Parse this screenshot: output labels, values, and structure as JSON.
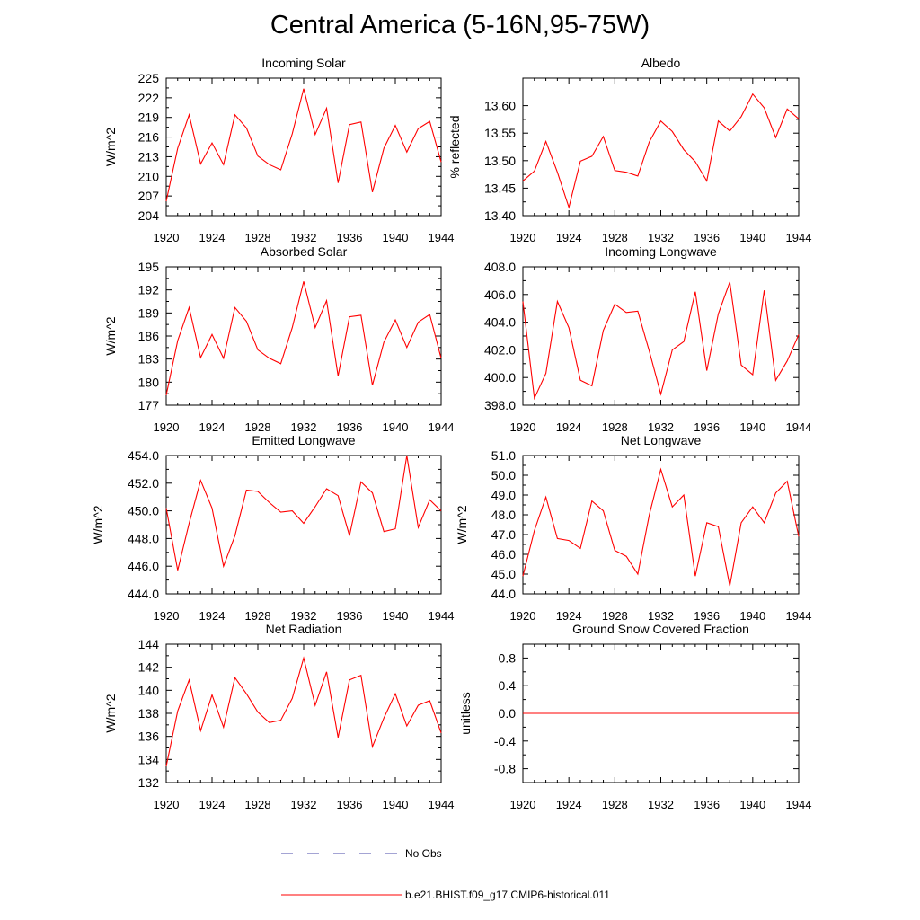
{
  "title": "Central America (5-16N,95-75W)",
  "colors": {
    "model": "#ff0000",
    "obs": "#4a4aa8",
    "axis": "#000000"
  },
  "legend": {
    "obs_label": "No Obs",
    "model_label": "b.e21.BHIST.f09_g17.CMIP6-historical.011"
  },
  "chart_data": [
    {
      "type": "line",
      "title": "Incoming Solar",
      "ylabel": "W/m^2",
      "x": [
        1920,
        1921,
        1922,
        1923,
        1924,
        1925,
        1926,
        1927,
        1928,
        1929,
        1930,
        1931,
        1932,
        1933,
        1934,
        1935,
        1936,
        1937,
        1938,
        1939,
        1940,
        1941,
        1942,
        1943,
        1944
      ],
      "values": [
        206.2,
        214.3,
        219.4,
        211.9,
        215.1,
        211.8,
        219.4,
        217.4,
        213.1,
        211.8,
        211.0,
        216.5,
        223.4,
        216.4,
        220.4,
        209.0,
        217.9,
        218.3,
        207.6,
        214.3,
        217.8,
        213.7,
        217.3,
        218.4,
        212.2
      ],
      "xlim": [
        1920,
        1944
      ],
      "ylim": [
        204,
        225
      ],
      "xticks": [
        1920,
        1924,
        1928,
        1932,
        1936,
        1940,
        1944
      ],
      "yticks": [
        204,
        207,
        210,
        213,
        216,
        219,
        222,
        225
      ],
      "ytick_labels": [
        "204",
        "207",
        "210",
        "213",
        "216",
        "219",
        "222",
        "225"
      ]
    },
    {
      "type": "line",
      "title": "Albedo",
      "ylabel": "% reflected",
      "x": [
        1920,
        1921,
        1922,
        1923,
        1924,
        1925,
        1926,
        1927,
        1928,
        1929,
        1930,
        1931,
        1932,
        1933,
        1934,
        1935,
        1936,
        1937,
        1938,
        1939,
        1940,
        1941,
        1942,
        1943,
        1944
      ],
      "values": [
        13.463,
        13.481,
        13.535,
        13.479,
        13.415,
        13.499,
        13.508,
        13.544,
        13.482,
        13.479,
        13.472,
        13.534,
        13.572,
        13.553,
        13.52,
        13.498,
        13.463,
        13.572,
        13.554,
        13.58,
        13.621,
        13.596,
        13.542,
        13.594,
        13.576
      ],
      "xlim": [
        1920,
        1944
      ],
      "ylim": [
        13.4,
        13.65
      ],
      "xticks": [
        1920,
        1924,
        1928,
        1932,
        1936,
        1940,
        1944
      ],
      "yticks": [
        13.4,
        13.45,
        13.5,
        13.55,
        13.6
      ],
      "ytick_labels": [
        "13.40",
        "13.45",
        "13.50",
        "13.55",
        "13.60"
      ]
    },
    {
      "type": "line",
      "title": "Absorbed Solar",
      "ylabel": "W/m^2",
      "x": [
        1920,
        1921,
        1922,
        1923,
        1924,
        1925,
        1926,
        1927,
        1928,
        1929,
        1930,
        1931,
        1932,
        1933,
        1934,
        1935,
        1936,
        1937,
        1938,
        1939,
        1940,
        1941,
        1942,
        1943,
        1944
      ],
      "values": [
        178.3,
        185.4,
        189.7,
        183.2,
        186.2,
        183.1,
        189.7,
        187.9,
        184.2,
        183.1,
        182.4,
        187.1,
        193.1,
        187.1,
        190.6,
        180.8,
        188.5,
        188.7,
        179.6,
        185.2,
        188.1,
        184.5,
        187.8,
        188.8,
        183.1
      ],
      "xlim": [
        1920,
        1944
      ],
      "ylim": [
        177,
        195
      ],
      "xticks": [
        1920,
        1924,
        1928,
        1932,
        1936,
        1940,
        1944
      ],
      "yticks": [
        177,
        180,
        183,
        186,
        189,
        192,
        195
      ],
      "ytick_labels": [
        "177",
        "180",
        "183",
        "186",
        "189",
        "192",
        "195"
      ]
    },
    {
      "type": "line",
      "title": "Incoming Longwave",
      "ylabel": "",
      "x": [
        1920,
        1921,
        1922,
        1923,
        1924,
        1925,
        1926,
        1927,
        1928,
        1929,
        1930,
        1931,
        1932,
        1933,
        1934,
        1935,
        1936,
        1937,
        1938,
        1939,
        1940,
        1941,
        1942,
        1943,
        1944
      ],
      "values": [
        405.5,
        398.5,
        400.3,
        405.5,
        403.6,
        399.8,
        399.4,
        403.4,
        405.3,
        404.7,
        404.8,
        401.9,
        398.8,
        402.0,
        402.6,
        406.2,
        400.5,
        404.6,
        406.9,
        400.9,
        400.2,
        406.3,
        399.8,
        401.2,
        403.1
      ],
      "xlim": [
        1920,
        1944
      ],
      "ylim": [
        398.0,
        408.0
      ],
      "xticks": [
        1920,
        1924,
        1928,
        1932,
        1936,
        1940,
        1944
      ],
      "yticks": [
        398.0,
        400.0,
        402.0,
        404.0,
        406.0,
        408.0
      ],
      "ytick_labels": [
        "398.0",
        "400.0",
        "402.0",
        "404.0",
        "406.0",
        "408.0"
      ]
    },
    {
      "type": "line",
      "title": "Emitted Longwave",
      "ylabel": "W/m^2",
      "x": [
        1920,
        1921,
        1922,
        1923,
        1924,
        1925,
        1926,
        1927,
        1928,
        1929,
        1930,
        1931,
        1932,
        1933,
        1934,
        1935,
        1936,
        1937,
        1938,
        1939,
        1940,
        1941,
        1942,
        1943,
        1944
      ],
      "values": [
        450.2,
        445.7,
        449.1,
        452.2,
        450.2,
        446.0,
        448.2,
        451.5,
        451.4,
        450.6,
        449.9,
        450.0,
        449.1,
        450.3,
        451.6,
        451.1,
        448.2,
        452.1,
        451.3,
        448.5,
        448.7,
        454.0,
        448.8,
        450.8,
        450.0
      ],
      "xlim": [
        1920,
        1944
      ],
      "ylim": [
        444.0,
        454.0
      ],
      "xticks": [
        1920,
        1924,
        1928,
        1932,
        1936,
        1940,
        1944
      ],
      "yticks": [
        444.0,
        446.0,
        448.0,
        450.0,
        452.0,
        454.0
      ],
      "ytick_labels": [
        "444.0",
        "446.0",
        "448.0",
        "450.0",
        "452.0",
        "454.0"
      ]
    },
    {
      "type": "line",
      "title": "Net Longwave",
      "ylabel": "W/m^2",
      "x": [
        1920,
        1921,
        1922,
        1923,
        1924,
        1925,
        1926,
        1927,
        1928,
        1929,
        1930,
        1931,
        1932,
        1933,
        1934,
        1935,
        1936,
        1937,
        1938,
        1939,
        1940,
        1941,
        1942,
        1943,
        1944
      ],
      "values": [
        44.9,
        47.2,
        48.9,
        46.8,
        46.7,
        46.3,
        48.7,
        48.2,
        46.2,
        45.9,
        45.0,
        48.0,
        50.3,
        48.4,
        49.0,
        44.9,
        47.6,
        47.4,
        44.4,
        47.6,
        48.4,
        47.6,
        49.1,
        49.7,
        46.9
      ],
      "xlim": [
        1920,
        1944
      ],
      "ylim": [
        44.0,
        51.0
      ],
      "xticks": [
        1920,
        1924,
        1928,
        1932,
        1936,
        1940,
        1944
      ],
      "yticks": [
        44.0,
        45.0,
        46.0,
        47.0,
        48.0,
        49.0,
        50.0,
        51.0
      ],
      "ytick_labels": [
        "44.0",
        "45.0",
        "46.0",
        "47.0",
        "48.0",
        "49.0",
        "50.0",
        "51.0"
      ]
    },
    {
      "type": "line",
      "title": "Net Radiation",
      "ylabel": "W/m^2",
      "x": [
        1920,
        1921,
        1922,
        1923,
        1924,
        1925,
        1926,
        1927,
        1928,
        1929,
        1930,
        1931,
        1932,
        1933,
        1934,
        1935,
        1936,
        1937,
        1938,
        1939,
        1940,
        1941,
        1942,
        1943,
        1944
      ],
      "values": [
        133.4,
        138.2,
        140.9,
        136.5,
        139.6,
        136.8,
        141.1,
        139.7,
        138.1,
        137.2,
        137.4,
        139.3,
        142.8,
        138.7,
        141.6,
        135.9,
        140.9,
        141.3,
        135.1,
        137.6,
        139.7,
        136.9,
        138.7,
        139.1,
        136.3
      ],
      "xlim": [
        1920,
        1944
      ],
      "ylim": [
        132,
        144
      ],
      "xticks": [
        1920,
        1924,
        1928,
        1932,
        1936,
        1940,
        1944
      ],
      "yticks": [
        132,
        134,
        136,
        138,
        140,
        142,
        144
      ],
      "ytick_labels": [
        "132",
        "134",
        "136",
        "138",
        "140",
        "142",
        "144"
      ]
    },
    {
      "type": "line",
      "title": "Ground Snow Covered Fraction",
      "ylabel": "unitless",
      "x": [
        1920,
        1921,
        1922,
        1923,
        1924,
        1925,
        1926,
        1927,
        1928,
        1929,
        1930,
        1931,
        1932,
        1933,
        1934,
        1935,
        1936,
        1937,
        1938,
        1939,
        1940,
        1941,
        1942,
        1943,
        1944
      ],
      "values": [
        0,
        0,
        0,
        0,
        0,
        0,
        0,
        0,
        0,
        0,
        0,
        0,
        0,
        0,
        0,
        0,
        0,
        0,
        0,
        0,
        0,
        0,
        0,
        0,
        0
      ],
      "xlim": [
        1920,
        1944
      ],
      "ylim": [
        -1.0,
        1.0
      ],
      "xticks": [
        1920,
        1924,
        1928,
        1932,
        1936,
        1940,
        1944
      ],
      "yticks": [
        -0.8,
        -0.4,
        0.0,
        0.4,
        0.8
      ],
      "ytick_labels": [
        "-0.8",
        "-0.4",
        "0.0",
        "0.4",
        "0.8"
      ]
    }
  ]
}
